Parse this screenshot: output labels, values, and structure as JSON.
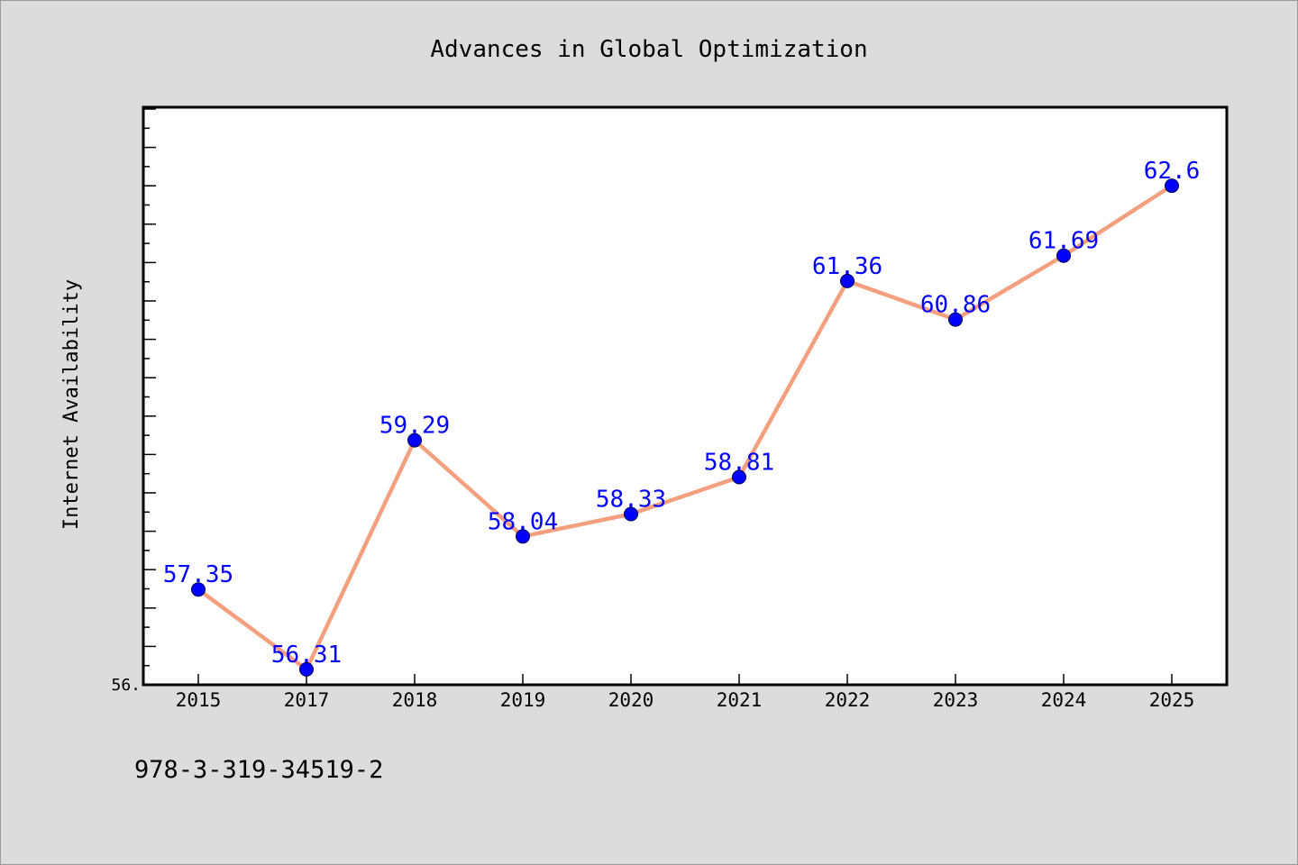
{
  "footer_text": "978-3-319-34519-2",
  "chart_data": {
    "type": "line",
    "title": "Advances in Global Optimization",
    "xlabel": "",
    "ylabel": "Internet Availability",
    "categories": [
      "2015",
      "2017",
      "2018",
      "2019",
      "2020",
      "2021",
      "2022",
      "2023",
      "2024",
      "2025"
    ],
    "series": [
      {
        "values": [
          57.35,
          56.31,
          59.29,
          58.04,
          58.33,
          58.81,
          61.36,
          60.86,
          61.69,
          62.6
        ],
        "value_labels": [
          "57.35",
          "56.31",
          "59.29",
          "58.04",
          "58.33",
          "58.81",
          "61.36",
          "60.86",
          "61.69",
          "62.6"
        ],
        "line_color": "#f4a07e",
        "marker_color": "#0000ff",
        "label_color": "#0000ff"
      }
    ],
    "ylim": [
      56.11,
      63.62
    ],
    "y_tick_labels": [
      "56."
    ],
    "grid": false,
    "legend": "none"
  }
}
